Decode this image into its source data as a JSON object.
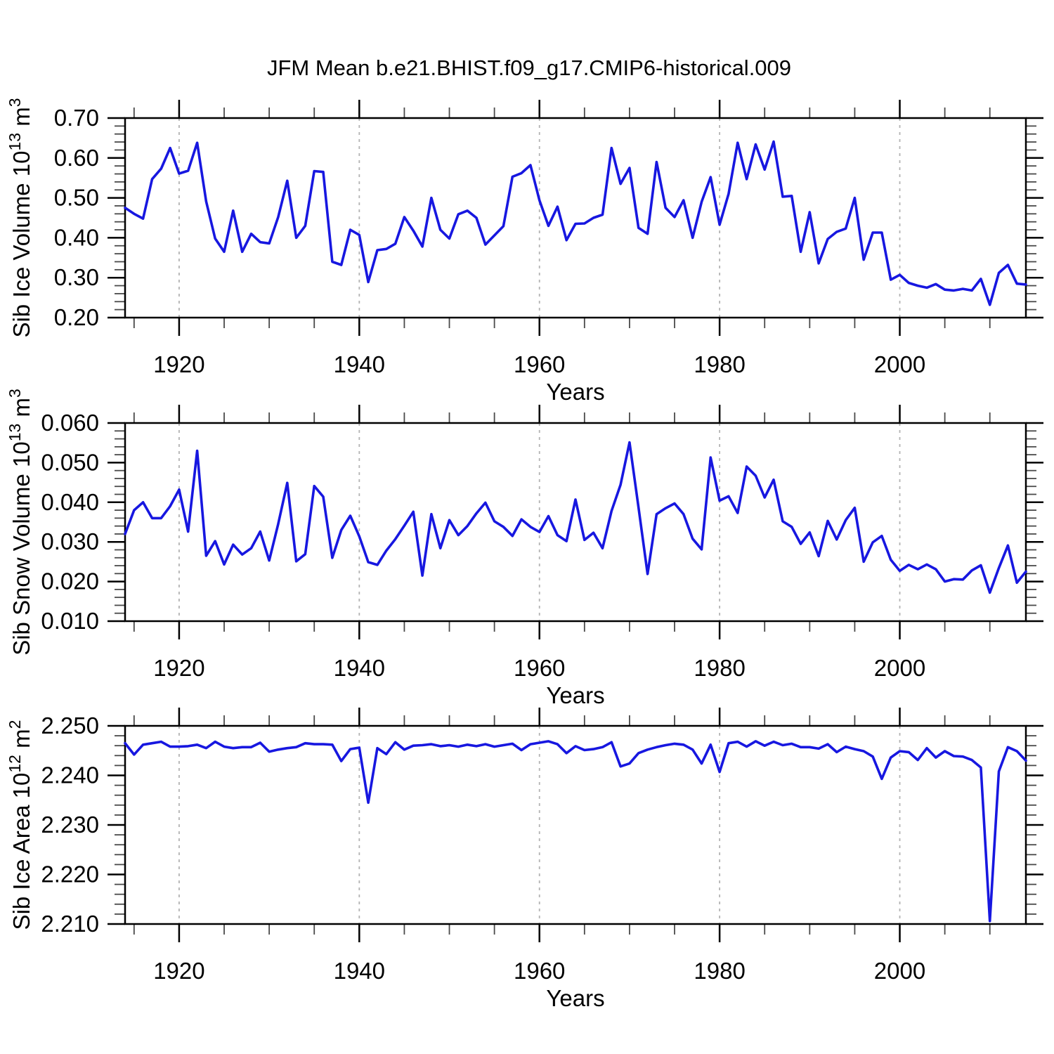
{
  "title": "JFM Mean b.e21.BHIST.f09_g17.CMIP6-historical.009",
  "style": {
    "line_color": "#1717e0",
    "grid_color": "#b3b3b3",
    "frame_color": "#000000",
    "minor_tick_color": "#4a4a4a",
    "background": "#ffffff"
  },
  "x_axis": {
    "label": "Years",
    "ticks": [
      1920,
      1940,
      1960,
      1980,
      2000
    ],
    "minor_step": 5,
    "minor_start": 1915,
    "minor_end": 2010,
    "range": [
      1914,
      2014
    ]
  },
  "chart_data": [
    {
      "type": "line",
      "title": "JFM Mean b.e21.BHIST.f09_g17.CMIP6-historical.009",
      "ylabel": "Sib Ice Volume 10^{13} m^{3}",
      "xlabel": "Years",
      "legend": "none",
      "grid": "x-major-dashed",
      "ylim": [
        0.2,
        0.7
      ],
      "ytick_values": [
        0.7,
        0.6,
        0.5,
        0.4,
        0.3,
        0.2
      ],
      "ytick_labels": [
        "0.70",
        "0.60",
        "0.50",
        "0.40",
        "0.30",
        "0.20"
      ],
      "y_minor_step": 0.02,
      "x_start": 1914,
      "x_step": 1,
      "values": [
        0.475,
        0.46,
        0.448,
        0.547,
        0.573,
        0.625,
        0.561,
        0.568,
        0.638,
        0.491,
        0.398,
        0.365,
        0.468,
        0.365,
        0.41,
        0.389,
        0.386,
        0.452,
        0.543,
        0.4,
        0.43,
        0.567,
        0.565,
        0.34,
        0.332,
        0.42,
        0.407,
        0.289,
        0.369,
        0.372,
        0.385,
        0.452,
        0.418,
        0.378,
        0.5,
        0.42,
        0.398,
        0.459,
        0.468,
        0.45,
        0.383,
        0.406,
        0.429,
        0.553,
        0.562,
        0.582,
        0.494,
        0.43,
        0.478,
        0.394,
        0.435,
        0.436,
        0.45,
        0.458,
        0.625,
        0.535,
        0.575,
        0.425,
        0.41,
        0.59,
        0.475,
        0.452,
        0.494,
        0.4,
        0.49,
        0.552,
        0.433,
        0.51,
        0.638,
        0.547,
        0.634,
        0.571,
        0.641,
        0.503,
        0.505,
        0.365,
        0.464,
        0.336,
        0.397,
        0.415,
        0.423,
        0.5,
        0.345,
        0.413,
        0.413,
        0.295,
        0.307,
        0.287,
        0.28,
        0.275,
        0.284,
        0.27,
        0.268,
        0.272,
        0.268,
        0.297,
        0.232,
        0.312,
        0.332,
        0.285,
        0.283
      ]
    },
    {
      "type": "line",
      "title": "",
      "ylabel": "Sib Snow Volume 10^{13} m^{3}",
      "xlabel": "Years",
      "legend": "none",
      "grid": "x-major-dashed",
      "ylim": [
        0.01,
        0.06
      ],
      "ytick_values": [
        0.06,
        0.05,
        0.04,
        0.03,
        0.02,
        0.01
      ],
      "ytick_labels": [
        "0.060",
        "0.050",
        "0.040",
        "0.030",
        "0.020",
        "0.010"
      ],
      "y_minor_step": 0.002,
      "x_start": 1914,
      "x_step": 1,
      "values": [
        0.032,
        0.038,
        0.04,
        0.036,
        0.036,
        0.039,
        0.0432,
        0.0326,
        0.053,
        0.0265,
        0.0302,
        0.0243,
        0.0293,
        0.0268,
        0.0284,
        0.0326,
        0.0253,
        0.0345,
        0.0449,
        0.0251,
        0.0269,
        0.0441,
        0.0414,
        0.026,
        0.033,
        0.0366,
        0.0314,
        0.0249,
        0.0242,
        0.0278,
        0.0307,
        0.0341,
        0.0376,
        0.0215,
        0.037,
        0.0284,
        0.0355,
        0.0317,
        0.034,
        0.0372,
        0.0399,
        0.0352,
        0.0338,
        0.0315,
        0.0357,
        0.0338,
        0.0325,
        0.0365,
        0.0317,
        0.0302,
        0.0407,
        0.0305,
        0.0323,
        0.0284,
        0.0378,
        0.0444,
        0.0551,
        0.0387,
        0.0219,
        0.037,
        0.0385,
        0.0397,
        0.037,
        0.0308,
        0.0281,
        0.0513,
        0.0404,
        0.0415,
        0.0373,
        0.049,
        0.0467,
        0.0412,
        0.0457,
        0.0352,
        0.0338,
        0.0295,
        0.0324,
        0.0264,
        0.0353,
        0.0306,
        0.0355,
        0.0386,
        0.025,
        0.0299,
        0.0315,
        0.0255,
        0.0227,
        0.0242,
        0.0231,
        0.0243,
        0.0231,
        0.02,
        0.0206,
        0.0205,
        0.0228,
        0.0241,
        0.0172,
        0.0234,
        0.0291,
        0.0197,
        0.0225
      ]
    },
    {
      "type": "line",
      "title": "",
      "ylabel": "Sib Ice Area 10^{12} m^{2}",
      "xlabel": "Years",
      "legend": "none",
      "grid": "x-major-dashed",
      "ylim": [
        2.21,
        2.25
      ],
      "ytick_values": [
        2.25,
        2.24,
        2.23,
        2.22,
        2.21
      ],
      "ytick_labels": [
        "2.250",
        "2.240",
        "2.230",
        "2.220",
        "2.210"
      ],
      "y_minor_step": 0.002,
      "x_start": 1914,
      "x_step": 1,
      "values": [
        2.2465,
        2.2442,
        2.2462,
        2.2465,
        2.2468,
        2.2458,
        2.2458,
        2.2459,
        2.2462,
        2.2455,
        2.2468,
        2.2458,
        2.2455,
        2.2457,
        2.2457,
        2.2466,
        2.2448,
        2.2452,
        2.2455,
        2.2457,
        2.2465,
        2.2463,
        2.2463,
        2.2462,
        2.2429,
        2.2453,
        2.2456,
        2.2345,
        2.2455,
        2.2443,
        2.2467,
        2.2452,
        2.246,
        2.2461,
        2.2463,
        2.2459,
        2.2461,
        2.2458,
        2.2462,
        2.2459,
        2.2463,
        2.2458,
        2.2461,
        2.2464,
        2.2451,
        2.2463,
        2.2466,
        2.2469,
        2.2463,
        2.2445,
        2.2459,
        2.2451,
        2.2453,
        2.2457,
        2.2467,
        2.2418,
        2.2424,
        2.2445,
        2.2452,
        2.2457,
        2.2461,
        2.2464,
        2.2462,
        2.2452,
        2.2424,
        2.2462,
        2.2407,
        2.2465,
        2.2468,
        2.2458,
        2.2469,
        2.246,
        2.2468,
        2.2461,
        2.2464,
        2.2457,
        2.2457,
        2.2454,
        2.2463,
        2.2447,
        2.2458,
        2.2453,
        2.2449,
        2.2438,
        2.2393,
        2.2436,
        2.2449,
        2.2447,
        2.2431,
        2.2455,
        2.2436,
        2.2449,
        2.2439,
        2.2438,
        2.2431,
        2.2416,
        2.2106,
        2.2408,
        2.2457,
        2.2449,
        2.243
      ]
    }
  ]
}
